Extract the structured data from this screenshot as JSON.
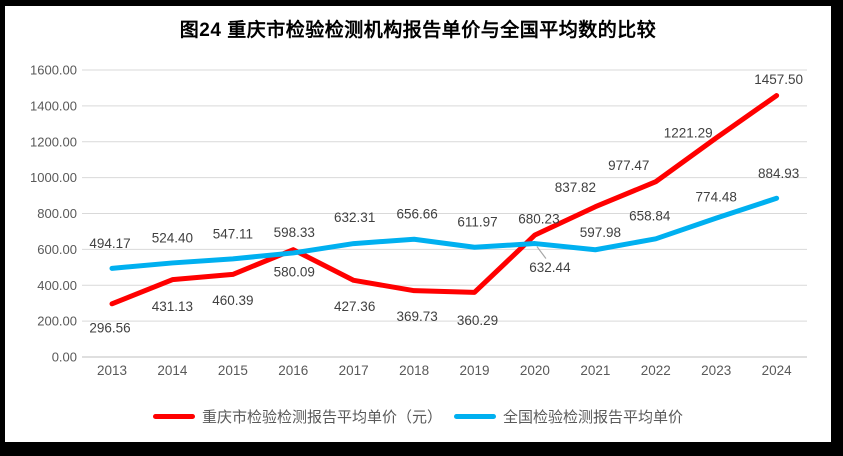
{
  "chart_data": {
    "type": "line",
    "title": "图24 重庆市检验检测机构报告单价与全国平均数的比较",
    "categories": [
      "2013",
      "2014",
      "2015",
      "2016",
      "2017",
      "2018",
      "2019",
      "2020",
      "2021",
      "2022",
      "2023",
      "2024"
    ],
    "series": [
      {
        "name": "重庆市检验检测报告平均单价（元）",
        "color": "#FF0000",
        "values": [
          296.56,
          431.13,
          460.39,
          598.33,
          427.36,
          369.73,
          360.29,
          680.23,
          837.82,
          977.47,
          1221.29,
          1457.5
        ]
      },
      {
        "name": "全国检验检测报告平均单价",
        "color": "#00B0F0",
        "values": [
          494.17,
          524.4,
          547.11,
          580.09,
          632.31,
          656.66,
          611.97,
          632.44,
          597.98,
          658.84,
          774.48,
          884.93
        ]
      }
    ],
    "ylim": [
      0,
      1600
    ],
    "ytick_step": 200,
    "ytick_labels": [
      "0.00",
      "200.00",
      "400.00",
      "600.00",
      "800.00",
      "1000.00",
      "1200.00",
      "1400.00",
      "1600.00"
    ],
    "grid": true,
    "legend_position": "bottom",
    "label_decimals": 2,
    "colors": {
      "gridline": "#D9D9D9",
      "axis_line": "#BFBFBF",
      "axis_text": "#595959",
      "data_label_text": "#404040",
      "callout_line": "#A6A6A6",
      "frame": "#000000"
    }
  }
}
